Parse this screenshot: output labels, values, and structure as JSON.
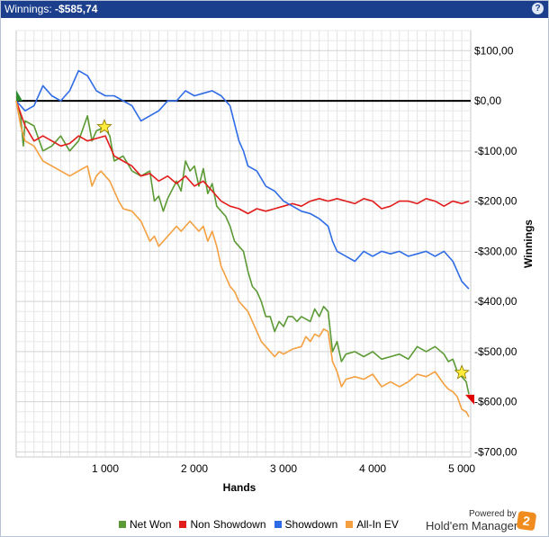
{
  "header": {
    "title_label": "Winnings: ",
    "title_value": "-$585,74",
    "help_glyph": "?"
  },
  "branding": {
    "powered_by": "Powered by",
    "product": "Hold'em Manager",
    "logo_char": "2"
  },
  "chart_data": {
    "type": "line",
    "xlabel": "Hands",
    "ylabel": "Winnings",
    "xlim": [
      0,
      5100
    ],
    "ylim": [
      -710,
      140
    ],
    "x_ticks": [
      1000,
      2000,
      3000,
      4000,
      5000
    ],
    "x_tick_labels": [
      "1 000",
      "2 000",
      "3 000",
      "4 000",
      "5 000"
    ],
    "y_ticks": [
      100,
      0,
      -100,
      -200,
      -300,
      -400,
      -500,
      -600,
      -700
    ],
    "y_tick_labels": [
      "$100,00",
      "$0,00",
      "-$100,00",
      "-$200,00",
      "-$300,00",
      "-$400,00",
      "-$500,00",
      "-$600,00",
      "-$700,00"
    ],
    "grid": true,
    "legend_position": "bottom",
    "zero_line": 0,
    "markers": [
      {
        "type": "start-triangle",
        "x": 0,
        "y": 0,
        "color": "#2e8b2e"
      },
      {
        "type": "star",
        "x": 990,
        "y": -52,
        "color": "#ffeb3b"
      },
      {
        "type": "star",
        "x": 5000,
        "y": -542,
        "color": "#ffeb3b"
      },
      {
        "type": "end-triangle",
        "x": 5080,
        "y": -595,
        "color": "#e00000"
      }
    ],
    "series": [
      {
        "name": "Net Won",
        "color": "#5b9a35",
        "points": [
          [
            0,
            0
          ],
          [
            50,
            -30
          ],
          [
            80,
            -90
          ],
          [
            100,
            -40
          ],
          [
            200,
            -50
          ],
          [
            300,
            -100
          ],
          [
            400,
            -90
          ],
          [
            500,
            -70
          ],
          [
            600,
            -100
          ],
          [
            700,
            -80
          ],
          [
            800,
            -30
          ],
          [
            850,
            -80
          ],
          [
            900,
            -60
          ],
          [
            990,
            -52
          ],
          [
            1050,
            -70
          ],
          [
            1100,
            -120
          ],
          [
            1200,
            -110
          ],
          [
            1300,
            -140
          ],
          [
            1400,
            -150
          ],
          [
            1500,
            -140
          ],
          [
            1550,
            -200
          ],
          [
            1600,
            -190
          ],
          [
            1650,
            -220
          ],
          [
            1700,
            -195
          ],
          [
            1800,
            -160
          ],
          [
            1850,
            -180
          ],
          [
            1900,
            -120
          ],
          [
            1950,
            -140
          ],
          [
            2000,
            -130
          ],
          [
            2050,
            -170
          ],
          [
            2100,
            -135
          ],
          [
            2150,
            -185
          ],
          [
            2200,
            -165
          ],
          [
            2250,
            -210
          ],
          [
            2300,
            -220
          ],
          [
            2350,
            -230
          ],
          [
            2400,
            -250
          ],
          [
            2450,
            -280
          ],
          [
            2500,
            -290
          ],
          [
            2550,
            -300
          ],
          [
            2600,
            -340
          ],
          [
            2650,
            -370
          ],
          [
            2700,
            -380
          ],
          [
            2750,
            -400
          ],
          [
            2800,
            -430
          ],
          [
            2850,
            -430
          ],
          [
            2900,
            -460
          ],
          [
            2950,
            -440
          ],
          [
            3000,
            -450
          ],
          [
            3050,
            -430
          ],
          [
            3100,
            -430
          ],
          [
            3150,
            -440
          ],
          [
            3200,
            -430
          ],
          [
            3300,
            -440
          ],
          [
            3350,
            -415
          ],
          [
            3400,
            -430
          ],
          [
            3450,
            -410
          ],
          [
            3500,
            -420
          ],
          [
            3550,
            -500
          ],
          [
            3600,
            -480
          ],
          [
            3650,
            -520
          ],
          [
            3700,
            -505
          ],
          [
            3800,
            -500
          ],
          [
            3900,
            -510
          ],
          [
            4000,
            -500
          ],
          [
            4100,
            -515
          ],
          [
            4200,
            -510
          ],
          [
            4300,
            -505
          ],
          [
            4400,
            -515
          ],
          [
            4500,
            -490
          ],
          [
            4600,
            -500
          ],
          [
            4700,
            -490
          ],
          [
            4800,
            -505
          ],
          [
            4850,
            -520
          ],
          [
            4900,
            -515
          ],
          [
            4950,
            -540
          ],
          [
            5000,
            -550
          ],
          [
            5050,
            -560
          ],
          [
            5080,
            -585
          ]
        ]
      },
      {
        "name": "Non Showdown",
        "color": "#e21b1b",
        "points": [
          [
            0,
            0
          ],
          [
            100,
            -50
          ],
          [
            200,
            -80
          ],
          [
            300,
            -70
          ],
          [
            400,
            -80
          ],
          [
            500,
            -90
          ],
          [
            600,
            -85
          ],
          [
            700,
            -70
          ],
          [
            800,
            -80
          ],
          [
            900,
            -75
          ],
          [
            1000,
            -70
          ],
          [
            1100,
            -110
          ],
          [
            1200,
            -120
          ],
          [
            1300,
            -130
          ],
          [
            1400,
            -150
          ],
          [
            1500,
            -145
          ],
          [
            1600,
            -160
          ],
          [
            1700,
            -150
          ],
          [
            1800,
            -165
          ],
          [
            1900,
            -150
          ],
          [
            2000,
            -170
          ],
          [
            2100,
            -160
          ],
          [
            2200,
            -180
          ],
          [
            2300,
            -200
          ],
          [
            2400,
            -210
          ],
          [
            2500,
            -215
          ],
          [
            2600,
            -225
          ],
          [
            2700,
            -215
          ],
          [
            2800,
            -220
          ],
          [
            2900,
            -215
          ],
          [
            3000,
            -210
          ],
          [
            3100,
            -205
          ],
          [
            3200,
            -210
          ],
          [
            3300,
            -200
          ],
          [
            3400,
            -195
          ],
          [
            3500,
            -200
          ],
          [
            3600,
            -195
          ],
          [
            3700,
            -200
          ],
          [
            3800,
            -205
          ],
          [
            3900,
            -195
          ],
          [
            4000,
            -200
          ],
          [
            4100,
            -215
          ],
          [
            4200,
            -210
          ],
          [
            4300,
            -200
          ],
          [
            4400,
            -200
          ],
          [
            4500,
            -205
          ],
          [
            4600,
            -195
          ],
          [
            4700,
            -200
          ],
          [
            4800,
            -210
          ],
          [
            4900,
            -200
          ],
          [
            5000,
            -205
          ],
          [
            5080,
            -200
          ]
        ]
      },
      {
        "name": "Showdown",
        "color": "#2e6be6",
        "points": [
          [
            0,
            0
          ],
          [
            100,
            -20
          ],
          [
            200,
            -10
          ],
          [
            300,
            30
          ],
          [
            400,
            10
          ],
          [
            500,
            0
          ],
          [
            600,
            20
          ],
          [
            700,
            60
          ],
          [
            800,
            50
          ],
          [
            900,
            20
          ],
          [
            1000,
            10
          ],
          [
            1100,
            10
          ],
          [
            1200,
            0
          ],
          [
            1300,
            -10
          ],
          [
            1400,
            -40
          ],
          [
            1500,
            -30
          ],
          [
            1600,
            -20
          ],
          [
            1700,
            0
          ],
          [
            1800,
            0
          ],
          [
            1900,
            20
          ],
          [
            2000,
            10
          ],
          [
            2100,
            15
          ],
          [
            2200,
            20
          ],
          [
            2300,
            10
          ],
          [
            2400,
            -10
          ],
          [
            2500,
            -80
          ],
          [
            2550,
            -100
          ],
          [
            2600,
            -130
          ],
          [
            2700,
            -140
          ],
          [
            2800,
            -170
          ],
          [
            2900,
            -180
          ],
          [
            3000,
            -200
          ],
          [
            3100,
            -210
          ],
          [
            3200,
            -220
          ],
          [
            3300,
            -225
          ],
          [
            3400,
            -235
          ],
          [
            3500,
            -250
          ],
          [
            3550,
            -280
          ],
          [
            3600,
            -300
          ],
          [
            3700,
            -310
          ],
          [
            3800,
            -320
          ],
          [
            3900,
            -300
          ],
          [
            4000,
            -310
          ],
          [
            4100,
            -300
          ],
          [
            4200,
            -305
          ],
          [
            4300,
            -300
          ],
          [
            4400,
            -310
          ],
          [
            4500,
            -305
          ],
          [
            4600,
            -300
          ],
          [
            4700,
            -310
          ],
          [
            4800,
            -300
          ],
          [
            4900,
            -320
          ],
          [
            5000,
            -360
          ],
          [
            5080,
            -375
          ]
        ]
      },
      {
        "name": "All-In EV",
        "color": "#f4a040",
        "points": [
          [
            0,
            0
          ],
          [
            50,
            -50
          ],
          [
            100,
            -80
          ],
          [
            200,
            -90
          ],
          [
            300,
            -120
          ],
          [
            400,
            -130
          ],
          [
            500,
            -140
          ],
          [
            600,
            -150
          ],
          [
            700,
            -140
          ],
          [
            800,
            -130
          ],
          [
            850,
            -170
          ],
          [
            900,
            -150
          ],
          [
            950,
            -140
          ],
          [
            1000,
            -150
          ],
          [
            1050,
            -160
          ],
          [
            1100,
            -180
          ],
          [
            1150,
            -200
          ],
          [
            1200,
            -215
          ],
          [
            1300,
            -220
          ],
          [
            1400,
            -240
          ],
          [
            1450,
            -260
          ],
          [
            1500,
            -280
          ],
          [
            1550,
            -270
          ],
          [
            1600,
            -290
          ],
          [
            1700,
            -270
          ],
          [
            1800,
            -250
          ],
          [
            1850,
            -260
          ],
          [
            1900,
            -250
          ],
          [
            1950,
            -240
          ],
          [
            2000,
            -250
          ],
          [
            2050,
            -260
          ],
          [
            2100,
            -250
          ],
          [
            2150,
            -280
          ],
          [
            2200,
            -260
          ],
          [
            2250,
            -290
          ],
          [
            2300,
            -330
          ],
          [
            2350,
            -350
          ],
          [
            2400,
            -370
          ],
          [
            2450,
            -380
          ],
          [
            2500,
            -400
          ],
          [
            2550,
            -410
          ],
          [
            2600,
            -420
          ],
          [
            2650,
            -440
          ],
          [
            2700,
            -460
          ],
          [
            2750,
            -480
          ],
          [
            2800,
            -490
          ],
          [
            2850,
            -500
          ],
          [
            2900,
            -510
          ],
          [
            2950,
            -500
          ],
          [
            3000,
            -505
          ],
          [
            3100,
            -495
          ],
          [
            3200,
            -490
          ],
          [
            3250,
            -470
          ],
          [
            3300,
            -480
          ],
          [
            3350,
            -465
          ],
          [
            3400,
            -470
          ],
          [
            3450,
            -455
          ],
          [
            3500,
            -460
          ],
          [
            3550,
            -520
          ],
          [
            3600,
            -540
          ],
          [
            3650,
            -570
          ],
          [
            3700,
            -555
          ],
          [
            3800,
            -550
          ],
          [
            3900,
            -555
          ],
          [
            4000,
            -545
          ],
          [
            4100,
            -570
          ],
          [
            4200,
            -560
          ],
          [
            4300,
            -570
          ],
          [
            4400,
            -560
          ],
          [
            4500,
            -545
          ],
          [
            4600,
            -550
          ],
          [
            4700,
            -540
          ],
          [
            4800,
            -565
          ],
          [
            4850,
            -575
          ],
          [
            4900,
            -580
          ],
          [
            4950,
            -590
          ],
          [
            5000,
            -615
          ],
          [
            5050,
            -620
          ],
          [
            5080,
            -630
          ]
        ]
      }
    ]
  }
}
